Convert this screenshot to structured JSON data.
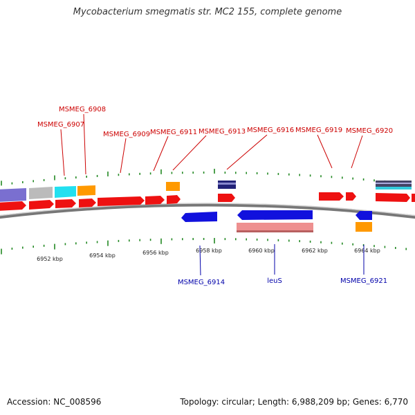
{
  "title": "Mycobacterium smegmatis str. MC2 155, complete genome",
  "footer": {
    "accession": "Accession: NC_008596",
    "topology": "Topology: circular; Length: 6,988,209 bp; Genes: 6,770"
  },
  "colors": {
    "forward_gene": "#ee1111",
    "reverse_gene": "#1111dd",
    "reverse_rna": "#ee9090",
    "orange": "#ff9900",
    "purple": "#7a6fd0",
    "grey": "#bbbbbb",
    "cyan": "#22e0f0",
    "navy": "#222277",
    "tick": "#228822",
    "label_fwd": "#cc0000",
    "label_rev": "#0000aa"
  },
  "axis": {
    "ticks": [
      {
        "label": "6952 kbp",
        "kbp": 6952
      },
      {
        "label": "6954 kbp",
        "kbp": 6954
      },
      {
        "label": "6956 kbp",
        "kbp": 6956
      },
      {
        "label": "6958 kbp",
        "kbp": 6958
      },
      {
        "label": "6960 kbp",
        "kbp": 6960
      },
      {
        "label": "6962 kbp",
        "kbp": 6962
      },
      {
        "label": "6964 kbp",
        "kbp": 6964
      }
    ]
  },
  "gene_labels_top": [
    "MSMEG_6908",
    "MSMEG_6907",
    "MSMEG_6909",
    "MSMEG_6911",
    "MSMEG_6913",
    "MSMEG_6916",
    "MSMEG_6919",
    "MSMEG_6920"
  ],
  "gene_labels_bottom": [
    "MSMEG_6914",
    "leuS",
    "MSMEG_6921"
  ]
}
